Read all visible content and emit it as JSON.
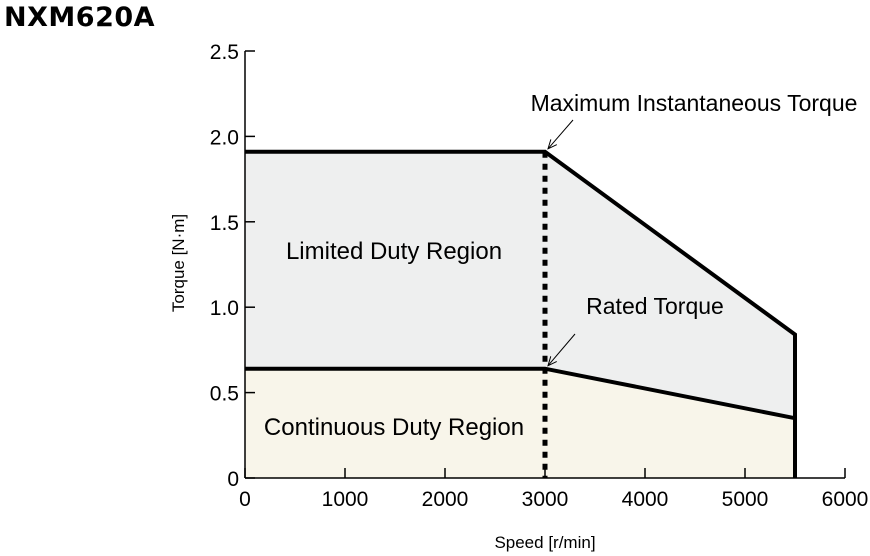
{
  "chart_data": {
    "type": "area",
    "title": "NXM620A",
    "xlabel": "Speed [r/min]",
    "ylabel": "Torque [N·m]",
    "xlim": [
      0,
      6000
    ],
    "ylim": [
      0,
      2.5
    ],
    "x_ticks": [
      0,
      1000,
      2000,
      3000,
      4000,
      5000,
      6000
    ],
    "x_tick_labels": [
      "0",
      "1000",
      "2000",
      "3000",
      "4000",
      "5000",
      "6000"
    ],
    "y_ticks": [
      0,
      0.5,
      1.0,
      1.5,
      2.0,
      2.5
    ],
    "y_tick_labels": [
      "0",
      "0.5",
      "1.0",
      "1.5",
      "2.0",
      "2.5"
    ],
    "grid": false,
    "series": [
      {
        "name": "Limited Duty Region",
        "color": "#eeefef",
        "x": [
          0,
          3000,
          5500,
          5500
        ],
        "y": [
          1.91,
          1.91,
          0.84,
          0.35
        ]
      },
      {
        "name": "Continuous Duty Region",
        "color": "#f8f5ea",
        "x": [
          0,
          3000,
          5500,
          5500
        ],
        "y": [
          0.64,
          0.64,
          0.35,
          0
        ]
      }
    ],
    "rated_speed_line": {
      "x": 3000,
      "style": "dotted"
    },
    "annotations": [
      {
        "text": "Maximum Instantaneous Torque",
        "x": 3000,
        "y": 1.91
      },
      {
        "text": "Rated Torque",
        "x": 3000,
        "y": 0.64
      }
    ]
  }
}
